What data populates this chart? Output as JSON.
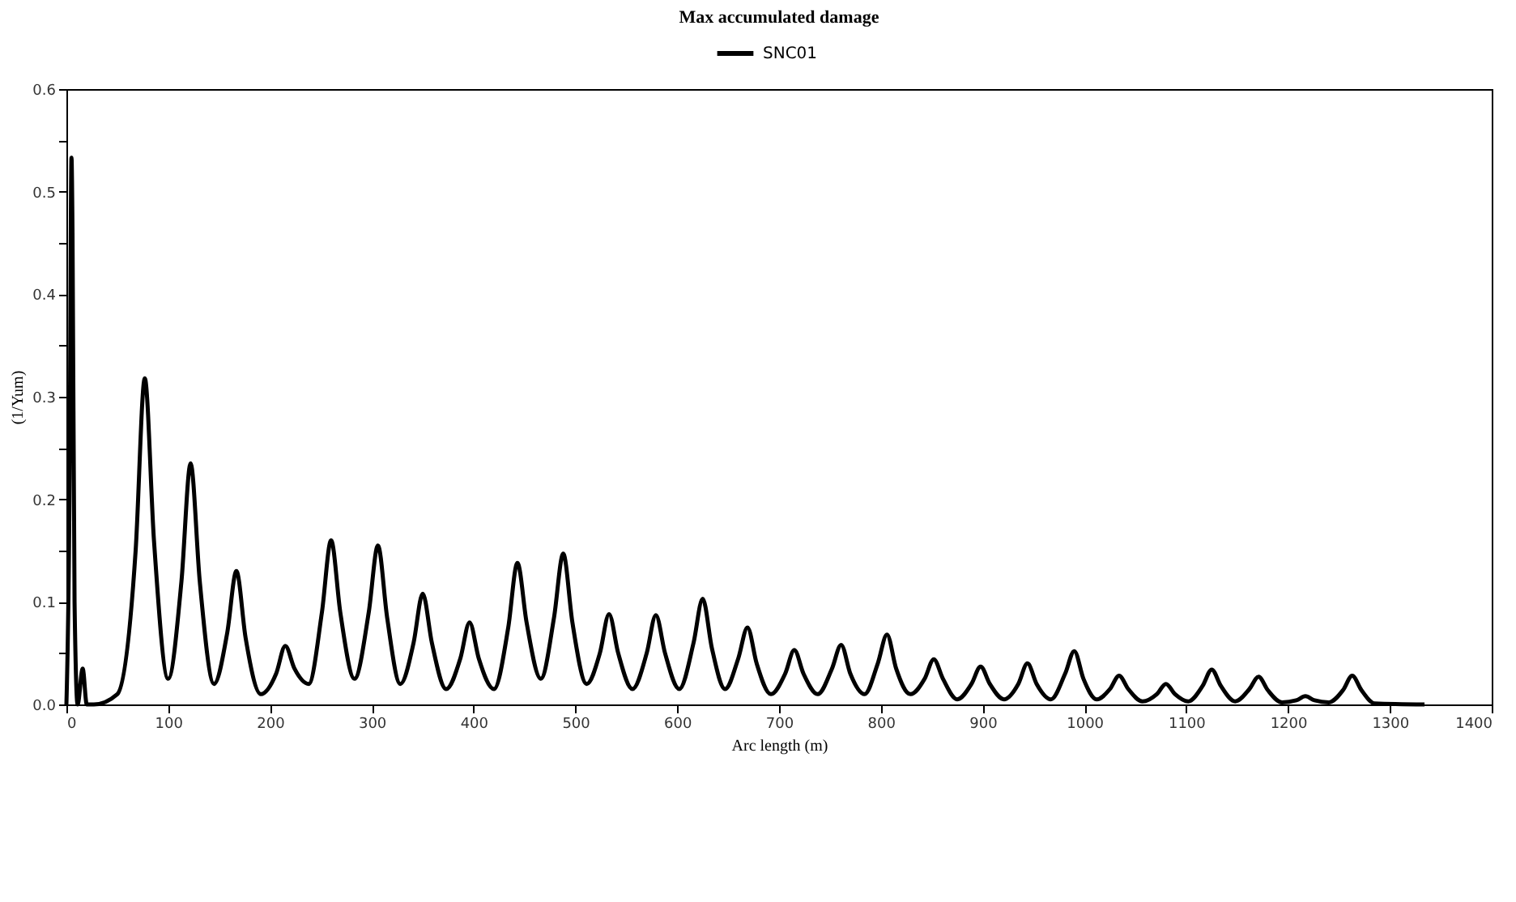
{
  "chart_data": {
    "type": "line",
    "title": "Max accumulated damage",
    "xlabel": "Arc length (m)",
    "ylabel": "(1/Yum)",
    "xlim": [
      0,
      1400
    ],
    "xticks": [
      0,
      100,
      200,
      300,
      400,
      500,
      600,
      700,
      800,
      900,
      1000,
      1100,
      1200,
      1300,
      1400
    ],
    "ylim": [
      0,
      0.6
    ],
    "yticks": [
      {
        "value": 0,
        "label": "0.0"
      },
      {
        "value": 0.05,
        "label": null
      },
      {
        "value": 0.1,
        "label": "0.1"
      },
      {
        "value": 0.15,
        "label": null
      },
      {
        "value": 0.2,
        "label": "0.2"
      },
      {
        "value": 0.25,
        "label": null
      },
      {
        "value": 0.3,
        "label": "0.3"
      },
      {
        "value": 0.35,
        "label": null
      },
      {
        "value": 0.4,
        "label": "0.4"
      },
      {
        "value": 0.45,
        "label": null
      },
      {
        "value": 0.5,
        "label": "0.5"
      },
      {
        "value": 0.55,
        "label": null
      },
      {
        "value": 0.6,
        "label": "0.6"
      }
    ],
    "grid": false,
    "legend": "top",
    "marker": "none",
    "line_style": "solid",
    "series": [
      {
        "name": "SNC01",
        "color": "#000000",
        "x": [
          0,
          3,
          5,
          6,
          8,
          11,
          16,
          20,
          27,
          50,
          68,
          77,
          86,
          100,
          113,
          122,
          131,
          145,
          158,
          167,
          176,
          191,
          206,
          215,
          224,
          238,
          251,
          260,
          269,
          283,
          297,
          306,
          315,
          328,
          341,
          350,
          359,
          373,
          387,
          396,
          405,
          420,
          434,
          443,
          452,
          466,
          479,
          488,
          497,
          511,
          524,
          533,
          542,
          556,
          570,
          579,
          588,
          602,
          616,
          625,
          634,
          647,
          660,
          669,
          678,
          692,
          706,
          715,
          724,
          738,
          752,
          761,
          770,
          784,
          797,
          806,
          815,
          829,
          843,
          852,
          861,
          875,
          889,
          898,
          907,
          921,
          935,
          944,
          953,
          967,
          981,
          990,
          999,
          1012,
          1025,
          1034,
          1043,
          1057,
          1071,
          1080,
          1089,
          1102,
          1116,
          1125,
          1134,
          1148,
          1162,
          1171,
          1180,
          1194,
          1208,
          1217,
          1226,
          1240,
          1254,
          1263,
          1272,
          1285,
          1334
        ],
        "values": [
          0,
          0.2,
          0.533,
          0.46,
          0.1,
          0,
          0.035,
          0,
          0,
          0.01,
          0.15,
          0.318,
          0.16,
          0.025,
          0.12,
          0.235,
          0.12,
          0.02,
          0.07,
          0.13,
          0.065,
          0.01,
          0.03,
          0.057,
          0.035,
          0.02,
          0.09,
          0.16,
          0.09,
          0.025,
          0.09,
          0.155,
          0.085,
          0.02,
          0.06,
          0.108,
          0.06,
          0.015,
          0.045,
          0.08,
          0.045,
          0.015,
          0.075,
          0.138,
          0.08,
          0.025,
          0.085,
          0.147,
          0.08,
          0.02,
          0.05,
          0.088,
          0.05,
          0.015,
          0.05,
          0.087,
          0.05,
          0.015,
          0.06,
          0.103,
          0.055,
          0.015,
          0.045,
          0.075,
          0.04,
          0.01,
          0.03,
          0.053,
          0.03,
          0.01,
          0.035,
          0.058,
          0.03,
          0.01,
          0.04,
          0.068,
          0.035,
          0.01,
          0.025,
          0.044,
          0.025,
          0.005,
          0.02,
          0.037,
          0.02,
          0.005,
          0.02,
          0.04,
          0.02,
          0.005,
          0.03,
          0.052,
          0.025,
          0.005,
          0.015,
          0.028,
          0.015,
          0.003,
          0.01,
          0.02,
          0.01,
          0.003,
          0.018,
          0.034,
          0.018,
          0.003,
          0.015,
          0.027,
          0.014,
          0.002,
          0.004,
          0.008,
          0.004,
          0.002,
          0.014,
          0.028,
          0.014,
          0.001,
          0
        ]
      }
    ]
  }
}
